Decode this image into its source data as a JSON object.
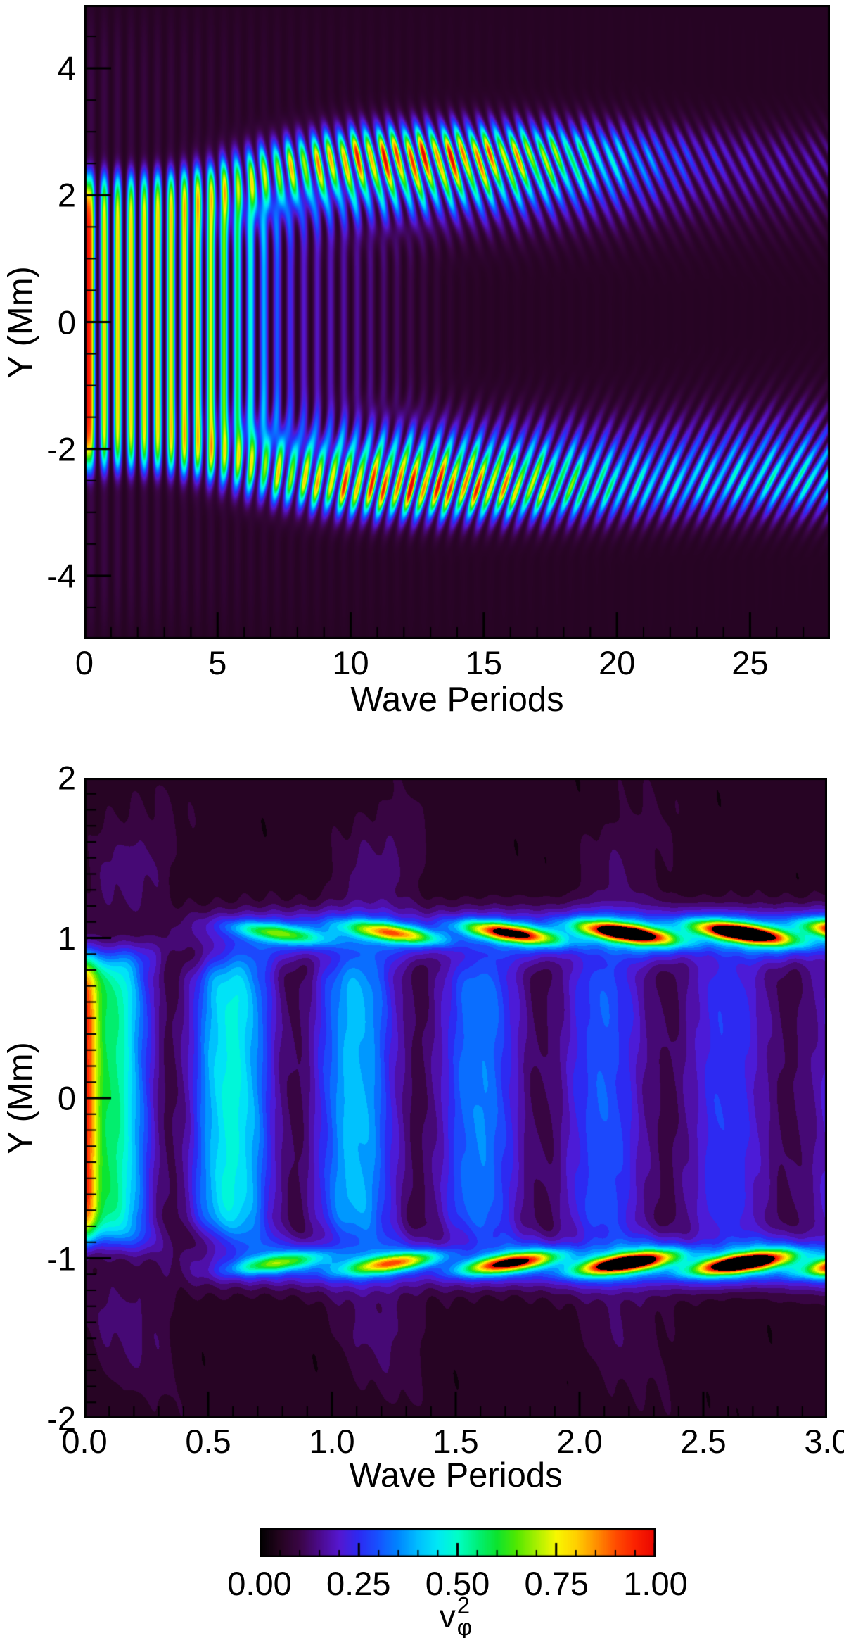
{
  "figure": {
    "background": "#ffffff"
  },
  "colormap": {
    "stops": [
      [
        0.0,
        "#000000"
      ],
      [
        0.05,
        "#24041f"
      ],
      [
        0.1,
        "#3a0545"
      ],
      [
        0.15,
        "#4b0a8a"
      ],
      [
        0.2,
        "#5517cf"
      ],
      [
        0.25,
        "#2d2af2"
      ],
      [
        0.3,
        "#1653ff"
      ],
      [
        0.35,
        "#0086ff"
      ],
      [
        0.4,
        "#00bfff"
      ],
      [
        0.45,
        "#00e9f5"
      ],
      [
        0.5,
        "#00ffc8"
      ],
      [
        0.55,
        "#00f07a"
      ],
      [
        0.6,
        "#0ce42e"
      ],
      [
        0.65,
        "#52e800"
      ],
      [
        0.7,
        "#a8f000"
      ],
      [
        0.75,
        "#f8f800"
      ],
      [
        0.8,
        "#ffd000"
      ],
      [
        0.85,
        "#ff9100"
      ],
      [
        0.9,
        "#ff4d00"
      ],
      [
        0.95,
        "#fb2100"
      ],
      [
        1.0,
        "#e90500"
      ]
    ]
  },
  "colorbar": {
    "min": 0.0,
    "max": 1.0,
    "tick_values": [
      0.0,
      0.25,
      0.5,
      0.75,
      1.0
    ],
    "tick_labels": [
      "0.00",
      "0.25",
      "0.50",
      "0.75",
      "1.00"
    ],
    "minor_step": 0.05,
    "title_base": "v",
    "title_sup": "2",
    "title_sub": "φ"
  },
  "chart_data": [
    {
      "type": "heatmap",
      "panel": "top",
      "xlabel": "Wave Periods",
      "ylabel": "Y (Mm)",
      "xlim": [
        0,
        28
      ],
      "ylim": [
        -5,
        5
      ],
      "x_tick_values": [
        0,
        5,
        10,
        15,
        20,
        25
      ],
      "x_tick_labels": [
        "0",
        "5",
        "10",
        "15",
        "20",
        "25"
      ],
      "x_minor_step": 1,
      "y_tick_values": [
        4,
        2,
        0,
        -2,
        -4
      ],
      "y_tick_labels": [
        "4",
        "2",
        "0",
        "-2",
        "-4"
      ],
      "y_minor_step": 0.5,
      "value_label": "v_phi^2",
      "value_range": [
        0,
        1
      ],
      "grid": false,
      "legend": "none",
      "description": "Normalized azimuthal velocity squared vs time (wave periods) and Y. Initial pulse (v2=1, red) spans |Y|<2.3 at t=0; interior standing-wave stripes (2 per period) fade by ~7 periods; energy concentrates into resonance bands near |Y|=2.1-2.7 peaking (yellow/red tips) around 10-16 periods, then phase-mixes into tilted striations decaying to blue by 28 periods.",
      "features": {
        "stripes_per_period": 2,
        "initial_pulse_halfwidth_mm": 2.3,
        "core_fade_periods": 7,
        "band_center_start_mm": 2.08,
        "band_center_end_mm": 2.63,
        "band_sigma_mm": 0.36,
        "band_peak_period": 12.5,
        "band_peak_value": 1.0,
        "late_band_value": 0.3
      }
    },
    {
      "type": "heatmap",
      "panel": "bottom",
      "xlabel": "Wave Periods",
      "ylabel": "Y (Mm)",
      "xlim": [
        0.0,
        3.0
      ],
      "ylim": [
        -2,
        2
      ],
      "x_tick_values": [
        0.0,
        0.5,
        1.0,
        1.5,
        2.0,
        2.5,
        3.0
      ],
      "x_tick_labels": [
        "0.0",
        "0.5",
        "1.0",
        "1.5",
        "2.0",
        "2.5",
        "3.0"
      ],
      "x_minor_step": 0.1,
      "y_tick_values": [
        2,
        1,
        0,
        -1,
        -2
      ],
      "y_tick_labels": [
        "2",
        "1",
        "0",
        "-1",
        "-2"
      ],
      "y_minor_step": 0.1,
      "value_label": "v_phi^2",
      "value_range": [
        0,
        1
      ],
      "grid": false,
      "legend": "none",
      "description": "Zoom of first 3 wave periods, |Y|<2. Broad blue interior columns (2 per period, centers near t=0.1,0.6,1.1,... decaying from ~0.45) with a green strip at t=0; tilted resonance streaks at Y=+/-1.03 every ~0.47 periods starting t~0.8, growing from blue (~0.34) to red (~1.0) by t~2.2-2.7; faint purple plumes extend toward |Y|~1.8.",
      "features": {
        "stripes_per_period": 2,
        "core_halfwidth_mm": 0.92,
        "column_start_value": 0.45,
        "column_decay_periods": 2.1,
        "resonance_y_mm": 1.03,
        "streak_first_period": 0.78,
        "streak_spacing_periods": 0.47,
        "streak_tilt_mm_per_period": -0.22,
        "streak_amplitudes": [
          0.34,
          0.55,
          0.75,
          0.93,
          1.0,
          1.0
        ],
        "contour_levels": 26
      }
    }
  ]
}
